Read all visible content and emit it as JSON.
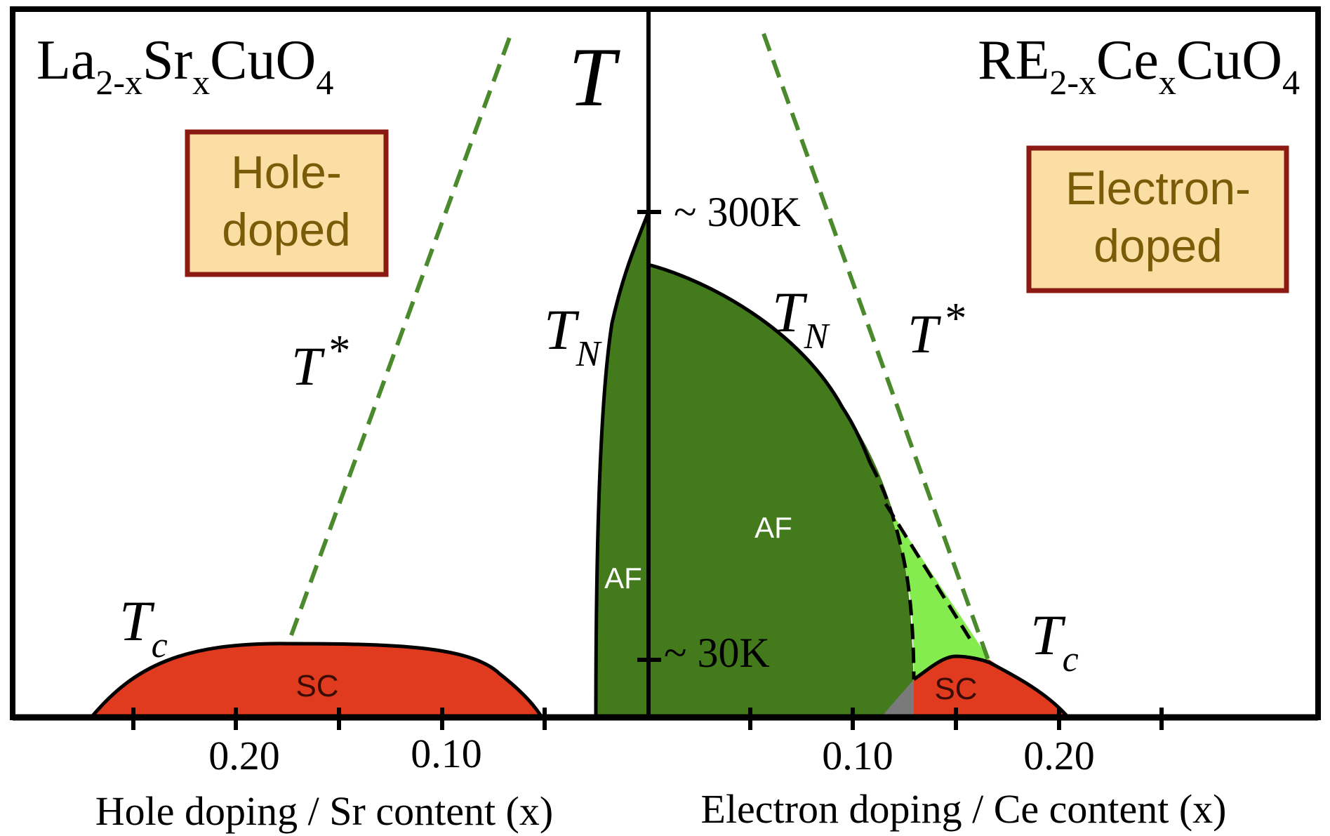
{
  "colors": {
    "af_dark": "#427a1c",
    "af_light": "#85ec4f",
    "sc": "#e03a1f",
    "tstar_dashed": "#4a8a2c",
    "box_fill": "#fbdea3",
    "box_border": "#8b1a12",
    "box_text": "#7a5b08",
    "axis": "#000000",
    "region_label": "#ffffff",
    "sc_label": "#3a0c06"
  },
  "left_panel": {
    "formula": {
      "base1": "La",
      "sub1": "2-x",
      "base2": "Sr",
      "sub2": "x",
      "base3": "CuO",
      "sub3": "4"
    },
    "type_box": {
      "line1": "Hole-",
      "line2": "doped"
    },
    "t_star": {
      "main": "T",
      "sup": "*"
    },
    "tc": {
      "main": "T",
      "sub": "c"
    },
    "sc_label": "SC",
    "ticks": [
      "0.20",
      "0.10"
    ],
    "xlabel": "Hole doping / Sr content (x)"
  },
  "right_panel": {
    "formula": {
      "base1": "RE",
      "sub1": "2-x",
      "base2": "Ce",
      "sub2": "x",
      "base3": "CuO",
      "sub3": "4"
    },
    "type_box": {
      "line1": "Electron-",
      "line2": "doped"
    },
    "t_star": {
      "main": "T",
      "sup": "*"
    },
    "tn": {
      "main": "T",
      "sub": "N"
    },
    "tc": {
      "main": "T",
      "sub": "c"
    },
    "af_label": "AF",
    "sc_label": "SC",
    "ticks": [
      "0.10",
      "0.20"
    ],
    "xlabel": "Electron doping / Ce content (x)"
  },
  "center_axis": {
    "label": "T",
    "tn": {
      "main": "T",
      "sub": "N"
    },
    "af_label": "AF",
    "mark_300": "~ 300K",
    "mark_30": "~ 30K"
  }
}
